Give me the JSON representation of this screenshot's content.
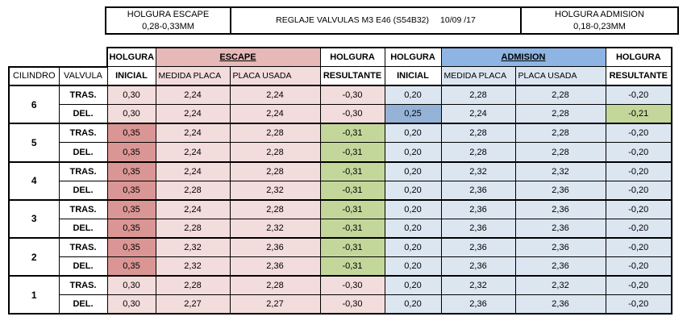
{
  "header": {
    "escape_title": "HOLGURA ESCAPE",
    "escape_range": "0,28-0,33MM",
    "main_title": "REGLAJE VALVULAS M3 E46 (S54B32)",
    "date": "10/09 /17",
    "admision_title": "HOLGURA ADMISION",
    "admision_range": "0,18-0,23MM"
  },
  "columns": {
    "cilindro": "CILINDRO",
    "valvula": "VALVULA",
    "holgura_inicial_1": "HOLGURA",
    "holgura_inicial_2": "INICIAL",
    "escape": "ESCAPE",
    "admision": "ADMISION",
    "medida_placa": "MEDIDA PLACA",
    "placa_usada": "PLACA USADA",
    "holgura_resultante_1": "HOLGURA",
    "holgura_resultante_2": "RESULTANTE"
  },
  "cylinders": [
    {
      "cilindro": "6",
      "rows": [
        {
          "valvula": "TRAS.",
          "esc_ini": "0,30",
          "esc_med": "2,24",
          "esc_usada": "2,24",
          "esc_res": "-0,30",
          "adm_ini": "0,20",
          "adm_med": "2,28",
          "adm_usada": "2,28",
          "adm_res": "-0,20"
        },
        {
          "valvula": "DEL.",
          "esc_ini": "0,30",
          "esc_med": "2,24",
          "esc_usada": "2,24",
          "esc_res": "-0,30",
          "adm_ini": "0,25",
          "adm_med": "2,24",
          "adm_usada": "2,28",
          "adm_res": "-0,21"
        }
      ]
    },
    {
      "cilindro": "5",
      "rows": [
        {
          "valvula": "TRAS.",
          "esc_ini": "0,35",
          "esc_med": "2,24",
          "esc_usada": "2,28",
          "esc_res": "-0,31",
          "adm_ini": "0,20",
          "adm_med": "2,28",
          "adm_usada": "2,28",
          "adm_res": "-0,20"
        },
        {
          "valvula": "DEL.",
          "esc_ini": "0,35",
          "esc_med": "2,24",
          "esc_usada": "2,28",
          "esc_res": "-0,31",
          "adm_ini": "0,20",
          "adm_med": "2,28",
          "adm_usada": "2,28",
          "adm_res": "-0,20"
        }
      ]
    },
    {
      "cilindro": "4",
      "rows": [
        {
          "valvula": "TRAS.",
          "esc_ini": "0,35",
          "esc_med": "2,24",
          "esc_usada": "2,28",
          "esc_res": "-0,31",
          "adm_ini": "0,20",
          "adm_med": "2,32",
          "adm_usada": "2,32",
          "adm_res": "-0,20"
        },
        {
          "valvula": "DEL.",
          "esc_ini": "0,35",
          "esc_med": "2,28",
          "esc_usada": "2,32",
          "esc_res": "-0,31",
          "adm_ini": "0,20",
          "adm_med": "2,36",
          "adm_usada": "2,36",
          "adm_res": "-0,20"
        }
      ]
    },
    {
      "cilindro": "3",
      "rows": [
        {
          "valvula": "TRAS.",
          "esc_ini": "0,35",
          "esc_med": "2,24",
          "esc_usada": "2,28",
          "esc_res": "-0,31",
          "adm_ini": "0,20",
          "adm_med": "2,36",
          "adm_usada": "2,36",
          "adm_res": "-0,20"
        },
        {
          "valvula": "DEL.",
          "esc_ini": "0,35",
          "esc_med": "2,28",
          "esc_usada": "2,32",
          "esc_res": "-0,31",
          "adm_ini": "0,20",
          "adm_med": "2,36",
          "adm_usada": "2,36",
          "adm_res": "-0,20"
        }
      ]
    },
    {
      "cilindro": "2",
      "rows": [
        {
          "valvula": "TRAS.",
          "esc_ini": "0,35",
          "esc_med": "2,32",
          "esc_usada": "2,36",
          "esc_res": "-0,31",
          "adm_ini": "0,20",
          "adm_med": "2,36",
          "adm_usada": "2,36",
          "adm_res": "-0,20"
        },
        {
          "valvula": "DEL.",
          "esc_ini": "0,35",
          "esc_med": "2,32",
          "esc_usada": "2,36",
          "esc_res": "-0,31",
          "adm_ini": "0,20",
          "adm_med": "2,36",
          "adm_usada": "2,36",
          "adm_res": "-0,20"
        }
      ]
    },
    {
      "cilindro": "1",
      "rows": [
        {
          "valvula": "TRAS.",
          "esc_ini": "0,30",
          "esc_med": "2,28",
          "esc_usada": "2,28",
          "esc_res": "-0,30",
          "adm_ini": "0,20",
          "adm_med": "2,32",
          "adm_usada": "2,32",
          "adm_res": "-0,20"
        },
        {
          "valvula": "DEL.",
          "esc_ini": "0,30",
          "esc_med": "2,27",
          "esc_usada": "2,27",
          "esc_res": "-0,30",
          "adm_ini": "0,20",
          "adm_med": "2,36",
          "adm_usada": "2,36",
          "adm_res": "-0,20"
        }
      ]
    }
  ],
  "highlight_colors": {
    "escape_out_of_range": "#da9694",
    "result_adjusted": "#c4d79b",
    "admision_out_of_range": "#95b3d7"
  }
}
